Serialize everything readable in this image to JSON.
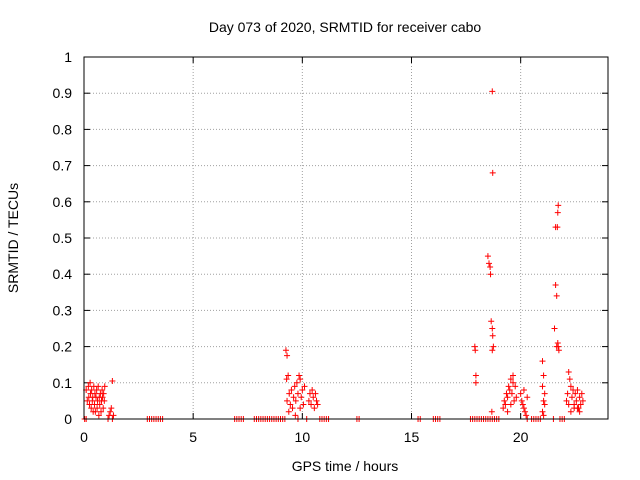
{
  "chart_data": {
    "type": "scatter",
    "title": "Day 073 of 2020, SRMTID for receiver cabo",
    "xlabel": "GPS time / hours",
    "ylabel": "SRMTID / TECUs",
    "xlim": [
      0,
      24
    ],
    "ylim": [
      0,
      1
    ],
    "xticks": [
      "0",
      "5",
      "10",
      "15",
      "20"
    ],
    "xtick_values": [
      0,
      5,
      10,
      15,
      20
    ],
    "yticks": [
      "0",
      "0.1",
      "0.2",
      "0.3",
      "0.4",
      "0.5",
      "0.6",
      "0.7",
      "0.8",
      "0.9",
      "1"
    ],
    "ytick_values": [
      0,
      0.1,
      0.2,
      0.3,
      0.4,
      0.5,
      0.6,
      0.7,
      0.8,
      0.9,
      1
    ],
    "grid": true,
    "legend": "none",
    "marker": "plus",
    "series": [
      {
        "color": "#ff0000",
        "points": [
          [
            0.03,
            0.0
          ],
          [
            0.1,
            0.0
          ],
          [
            0.1,
            0.08
          ],
          [
            0.15,
            0.05
          ],
          [
            0.2,
            0.09
          ],
          [
            0.22,
            0.06
          ],
          [
            0.25,
            0.04
          ],
          [
            0.3,
            0.07
          ],
          [
            0.33,
            0.03
          ],
          [
            0.35,
            0.08
          ],
          [
            0.38,
            0.05
          ],
          [
            0.4,
            0.06
          ],
          [
            0.45,
            0.09
          ],
          [
            0.48,
            0.04
          ],
          [
            0.5,
            0.07
          ],
          [
            0.52,
            0.02
          ],
          [
            0.55,
            0.06
          ],
          [
            0.58,
            0.08
          ],
          [
            0.6,
            0.03
          ],
          [
            0.62,
            0.05
          ],
          [
            0.65,
            0.09
          ],
          [
            0.7,
            0.06
          ],
          [
            0.72,
            0.04
          ],
          [
            0.75,
            0.07
          ],
          [
            0.78,
            0.02
          ],
          [
            0.8,
            0.05
          ],
          [
            0.83,
            0.08
          ],
          [
            0.85,
            0.06
          ],
          [
            0.88,
            0.03
          ],
          [
            0.9,
            0.07
          ],
          [
            0.93,
            0.05
          ],
          [
            0.95,
            0.09
          ],
          [
            0.28,
            0.1
          ],
          [
            0.42,
            0.02
          ],
          [
            0.68,
            0.01
          ],
          [
            1.1,
            0.0
          ],
          [
            1.15,
            0.01
          ],
          [
            1.2,
            0.02
          ],
          [
            1.25,
            0.03
          ],
          [
            1.3,
            0.0
          ],
          [
            1.35,
            0.01
          ],
          [
            1.3,
            0.105
          ],
          [
            2.9,
            0.0
          ],
          [
            3.0,
            0.0
          ],
          [
            3.1,
            0.0
          ],
          [
            3.2,
            0.0
          ],
          [
            3.3,
            0.0
          ],
          [
            3.4,
            0.0
          ],
          [
            3.5,
            0.0
          ],
          [
            3.6,
            0.0
          ],
          [
            6.9,
            0.0
          ],
          [
            7.0,
            0.0
          ],
          [
            7.1,
            0.0
          ],
          [
            7.2,
            0.0
          ],
          [
            7.3,
            0.0
          ],
          [
            7.8,
            0.0
          ],
          [
            7.9,
            0.0
          ],
          [
            8.0,
            0.0
          ],
          [
            8.1,
            0.0
          ],
          [
            8.2,
            0.0
          ],
          [
            8.3,
            0.0
          ],
          [
            8.4,
            0.0
          ],
          [
            8.5,
            0.0
          ],
          [
            8.6,
            0.0
          ],
          [
            8.7,
            0.0
          ],
          [
            8.8,
            0.0
          ],
          [
            8.9,
            0.0
          ],
          [
            9.0,
            0.0
          ],
          [
            9.1,
            0.0
          ],
          [
            9.2,
            0.0
          ],
          [
            9.25,
            0.19
          ],
          [
            9.3,
            0.175
          ],
          [
            9.28,
            0.11
          ],
          [
            9.35,
            0.12
          ],
          [
            9.3,
            0.05
          ],
          [
            9.38,
            0.02
          ],
          [
            9.4,
            0.07
          ],
          [
            9.45,
            0.04
          ],
          [
            9.5,
            0.08
          ],
          [
            9.55,
            0.03
          ],
          [
            9.6,
            0.06
          ],
          [
            9.65,
            0.09
          ],
          [
            9.7,
            0.05
          ],
          [
            9.75,
            0.1
          ],
          [
            9.8,
            0.07
          ],
          [
            9.85,
            0.12
          ],
          [
            9.9,
            0.11
          ],
          [
            9.95,
            0.06
          ],
          [
            10.0,
            0.08
          ],
          [
            10.05,
            0.04
          ],
          [
            10.1,
            0.09
          ],
          [
            9.68,
            0.01
          ],
          [
            9.9,
            0.03
          ],
          [
            9.8,
            0.0
          ],
          [
            10.2,
            0.0
          ],
          [
            10.3,
            0.05
          ],
          [
            10.35,
            0.07
          ],
          [
            10.4,
            0.04
          ],
          [
            10.45,
            0.08
          ],
          [
            10.5,
            0.06
          ],
          [
            10.55,
            0.03
          ],
          [
            10.6,
            0.07
          ],
          [
            10.65,
            0.05
          ],
          [
            10.7,
            0.04
          ],
          [
            10.8,
            0.0
          ],
          [
            10.9,
            0.0
          ],
          [
            11.0,
            0.0
          ],
          [
            11.1,
            0.0
          ],
          [
            11.2,
            0.0
          ],
          [
            12.5,
            0.0
          ],
          [
            12.6,
            0.0
          ],
          [
            15.3,
            0.0
          ],
          [
            15.4,
            0.0
          ],
          [
            16.0,
            0.0
          ],
          [
            16.1,
            0.0
          ],
          [
            16.2,
            0.0
          ],
          [
            16.3,
            0.0
          ],
          [
            17.7,
            0.0
          ],
          [
            17.8,
            0.0
          ],
          [
            17.9,
            0.0
          ],
          [
            18.0,
            0.0
          ],
          [
            18.1,
            0.0
          ],
          [
            18.2,
            0.0
          ],
          [
            18.3,
            0.0
          ],
          [
            18.4,
            0.0
          ],
          [
            18.5,
            0.0
          ],
          [
            18.6,
            0.0
          ],
          [
            18.7,
            0.0
          ],
          [
            18.8,
            0.0
          ],
          [
            18.9,
            0.0
          ],
          [
            19.0,
            0.0
          ],
          [
            17.9,
            0.2
          ],
          [
            17.92,
            0.19
          ],
          [
            17.95,
            0.12
          ],
          [
            17.95,
            0.1
          ],
          [
            18.5,
            0.45
          ],
          [
            18.55,
            0.43
          ],
          [
            18.6,
            0.42
          ],
          [
            18.62,
            0.4
          ],
          [
            18.65,
            0.27
          ],
          [
            18.7,
            0.25
          ],
          [
            18.72,
            0.23
          ],
          [
            18.75,
            0.2
          ],
          [
            18.7,
            0.19
          ],
          [
            18.68,
            0.02
          ],
          [
            18.72,
            0.68
          ],
          [
            18.7,
            0.905
          ],
          [
            19.2,
            0.03
          ],
          [
            19.25,
            0.05
          ],
          [
            19.3,
            0.04
          ],
          [
            19.35,
            0.07
          ],
          [
            19.4,
            0.06
          ],
          [
            19.45,
            0.09
          ],
          [
            19.5,
            0.08
          ],
          [
            19.55,
            0.11
          ],
          [
            19.6,
            0.07
          ],
          [
            19.65,
            0.1
          ],
          [
            19.7,
            0.05
          ],
          [
            19.75,
            0.09
          ],
          [
            19.8,
            0.06
          ],
          [
            19.4,
            0.02
          ],
          [
            19.55,
            0.04
          ],
          [
            19.65,
            0.12
          ],
          [
            20.0,
            0.07
          ],
          [
            20.05,
            0.05
          ],
          [
            20.1,
            0.04
          ],
          [
            20.15,
            0.03
          ],
          [
            20.2,
            0.02
          ],
          [
            20.25,
            0.01
          ],
          [
            20.3,
            0.06
          ],
          [
            20.15,
            0.08
          ],
          [
            20.3,
            0.0
          ],
          [
            20.5,
            0.0
          ],
          [
            20.6,
            0.0
          ],
          [
            20.7,
            0.0
          ],
          [
            20.8,
            0.0
          ],
          [
            20.9,
            0.0
          ],
          [
            21.0,
            0.16
          ],
          [
            21.05,
            0.12
          ],
          [
            21.0,
            0.09
          ],
          [
            21.1,
            0.07
          ],
          [
            21.05,
            0.05
          ],
          [
            21.1,
            0.04
          ],
          [
            21.0,
            0.02
          ],
          [
            21.05,
            0.01
          ],
          [
            21.5,
            0.0
          ],
          [
            21.55,
            0.25
          ],
          [
            21.6,
            0.37
          ],
          [
            21.65,
            0.34
          ],
          [
            21.6,
            0.53
          ],
          [
            21.68,
            0.53
          ],
          [
            21.7,
            0.57
          ],
          [
            21.72,
            0.59
          ],
          [
            21.65,
            0.2
          ],
          [
            21.7,
            0.21
          ],
          [
            21.75,
            0.19
          ],
          [
            21.72,
            0.2
          ],
          [
            21.8,
            0.0
          ],
          [
            21.9,
            0.0
          ],
          [
            22.0,
            0.0
          ],
          [
            22.1,
            0.05
          ],
          [
            22.15,
            0.07
          ],
          [
            22.2,
            0.13
          ],
          [
            22.25,
            0.11
          ],
          [
            22.3,
            0.09
          ],
          [
            22.35,
            0.06
          ],
          [
            22.4,
            0.08
          ],
          [
            22.45,
            0.04
          ],
          [
            22.5,
            0.07
          ],
          [
            22.55,
            0.05
          ],
          [
            22.6,
            0.08
          ],
          [
            22.65,
            0.03
          ],
          [
            22.7,
            0.06
          ],
          [
            22.75,
            0.04
          ],
          [
            22.8,
            0.07
          ],
          [
            22.85,
            0.05
          ],
          [
            22.3,
            0.02
          ],
          [
            22.45,
            0.03
          ],
          [
            22.6,
            0.03
          ],
          [
            22.7,
            0.02
          ],
          [
            22.2,
            0.04
          ]
        ]
      }
    ]
  }
}
